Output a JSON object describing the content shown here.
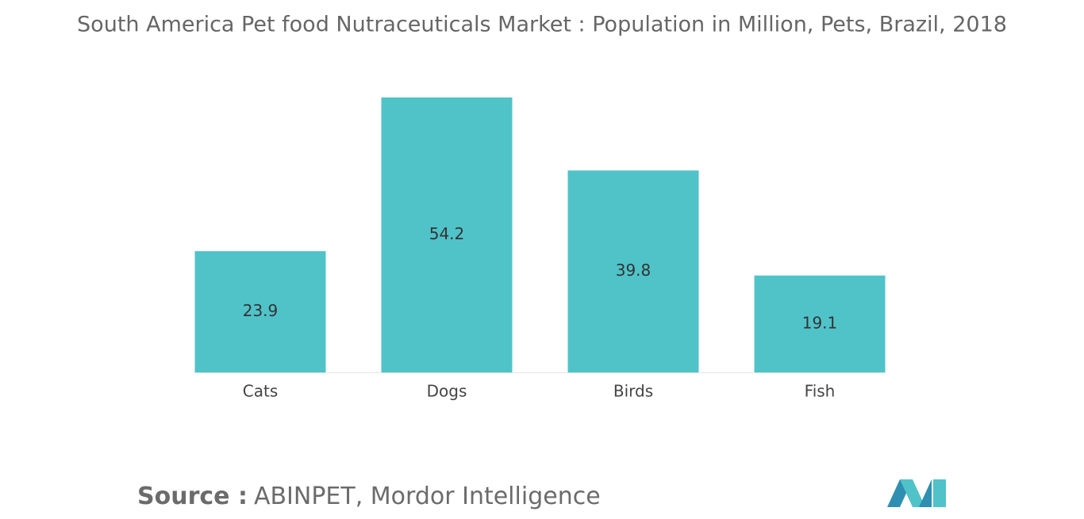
{
  "chart_data": {
    "type": "bar",
    "title": "South America Pet food Nutraceuticals Market : Population in Million, Pets, Brazil, 2018",
    "categories": [
      "Cats",
      "Dogs",
      "Birds",
      "Fish"
    ],
    "values": [
      23.9,
      54.2,
      39.8,
      19.1
    ],
    "color": "#50c3c9",
    "source_label": "Source :",
    "source": "ABINPET, Mordor Intelligence"
  }
}
